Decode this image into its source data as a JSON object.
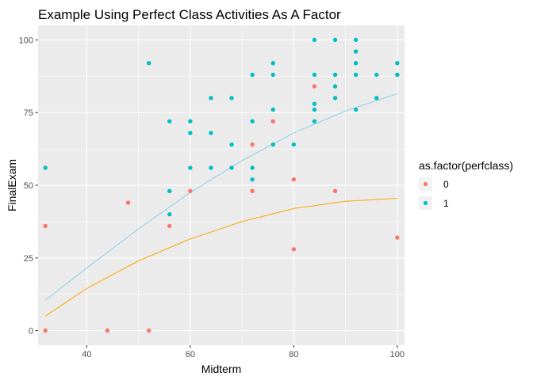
{
  "chart_data": {
    "type": "scatter",
    "title": "Example Using Perfect Class Activities As A Factor",
    "xlabel": "Midterm",
    "ylabel": "FinalExam",
    "xlim": [
      30.6,
      101.4
    ],
    "ylim": [
      -5,
      105
    ],
    "x_ticks": [
      40,
      60,
      80,
      100
    ],
    "y_ticks": [
      0,
      25,
      50,
      75,
      100
    ],
    "grid": true,
    "legend": {
      "title": "as.factor(perfclass)",
      "position": "right",
      "entries": [
        {
          "label": "0",
          "color": "#F8766D"
        },
        {
          "label": "1",
          "color": "#00BFC4"
        }
      ]
    },
    "series": [
      {
        "name": "0",
        "color": "#F8766D",
        "points": [
          [
            32,
            36
          ],
          [
            32,
            0
          ],
          [
            44,
            0
          ],
          [
            48,
            44
          ],
          [
            52,
            0
          ],
          [
            56,
            36
          ],
          [
            60,
            48
          ],
          [
            72,
            64
          ],
          [
            72,
            48
          ],
          [
            76,
            72
          ],
          [
            80,
            52
          ],
          [
            80,
            28
          ],
          [
            84,
            84
          ],
          [
            88,
            48
          ],
          [
            100,
            32
          ]
        ]
      },
      {
        "name": "1",
        "color": "#00BFC4",
        "points": [
          [
            32,
            56
          ],
          [
            52,
            92
          ],
          [
            56,
            72
          ],
          [
            56,
            48
          ],
          [
            56,
            40
          ],
          [
            60,
            72
          ],
          [
            60,
            68
          ],
          [
            60,
            56
          ],
          [
            64,
            80
          ],
          [
            64,
            68
          ],
          [
            64,
            56
          ],
          [
            68,
            80
          ],
          [
            68,
            64
          ],
          [
            68,
            56
          ],
          [
            72,
            88
          ],
          [
            72,
            72
          ],
          [
            72,
            56
          ],
          [
            72,
            52
          ],
          [
            76,
            92
          ],
          [
            76,
            88
          ],
          [
            76,
            76
          ],
          [
            76,
            64
          ],
          [
            80,
            64
          ],
          [
            84,
            100
          ],
          [
            84,
            88
          ],
          [
            84,
            78
          ],
          [
            84,
            76
          ],
          [
            84,
            72
          ],
          [
            88,
            100
          ],
          [
            88,
            88
          ],
          [
            88,
            84
          ],
          [
            88,
            80
          ],
          [
            92,
            100
          ],
          [
            92,
            96
          ],
          [
            92,
            92
          ],
          [
            92,
            88
          ],
          [
            92,
            76
          ],
          [
            96,
            88
          ],
          [
            96,
            80
          ],
          [
            100,
            92
          ],
          [
            100,
            88
          ]
        ]
      }
    ],
    "fitted_curves": [
      {
        "color": "#87CEEB",
        "points": [
          [
            32,
            10.5
          ],
          [
            40,
            21.5
          ],
          [
            50,
            35
          ],
          [
            60,
            47.5
          ],
          [
            70,
            58.5
          ],
          [
            80,
            68
          ],
          [
            90,
            75.5
          ],
          [
            100,
            81.5
          ]
        ]
      },
      {
        "color": "#FFA500",
        "points": [
          [
            32,
            5
          ],
          [
            40,
            14.5
          ],
          [
            50,
            24
          ],
          [
            60,
            31.5
          ],
          [
            70,
            37.5
          ],
          [
            80,
            42
          ],
          [
            90,
            44.5
          ],
          [
            100,
            45.5
          ]
        ]
      }
    ]
  }
}
